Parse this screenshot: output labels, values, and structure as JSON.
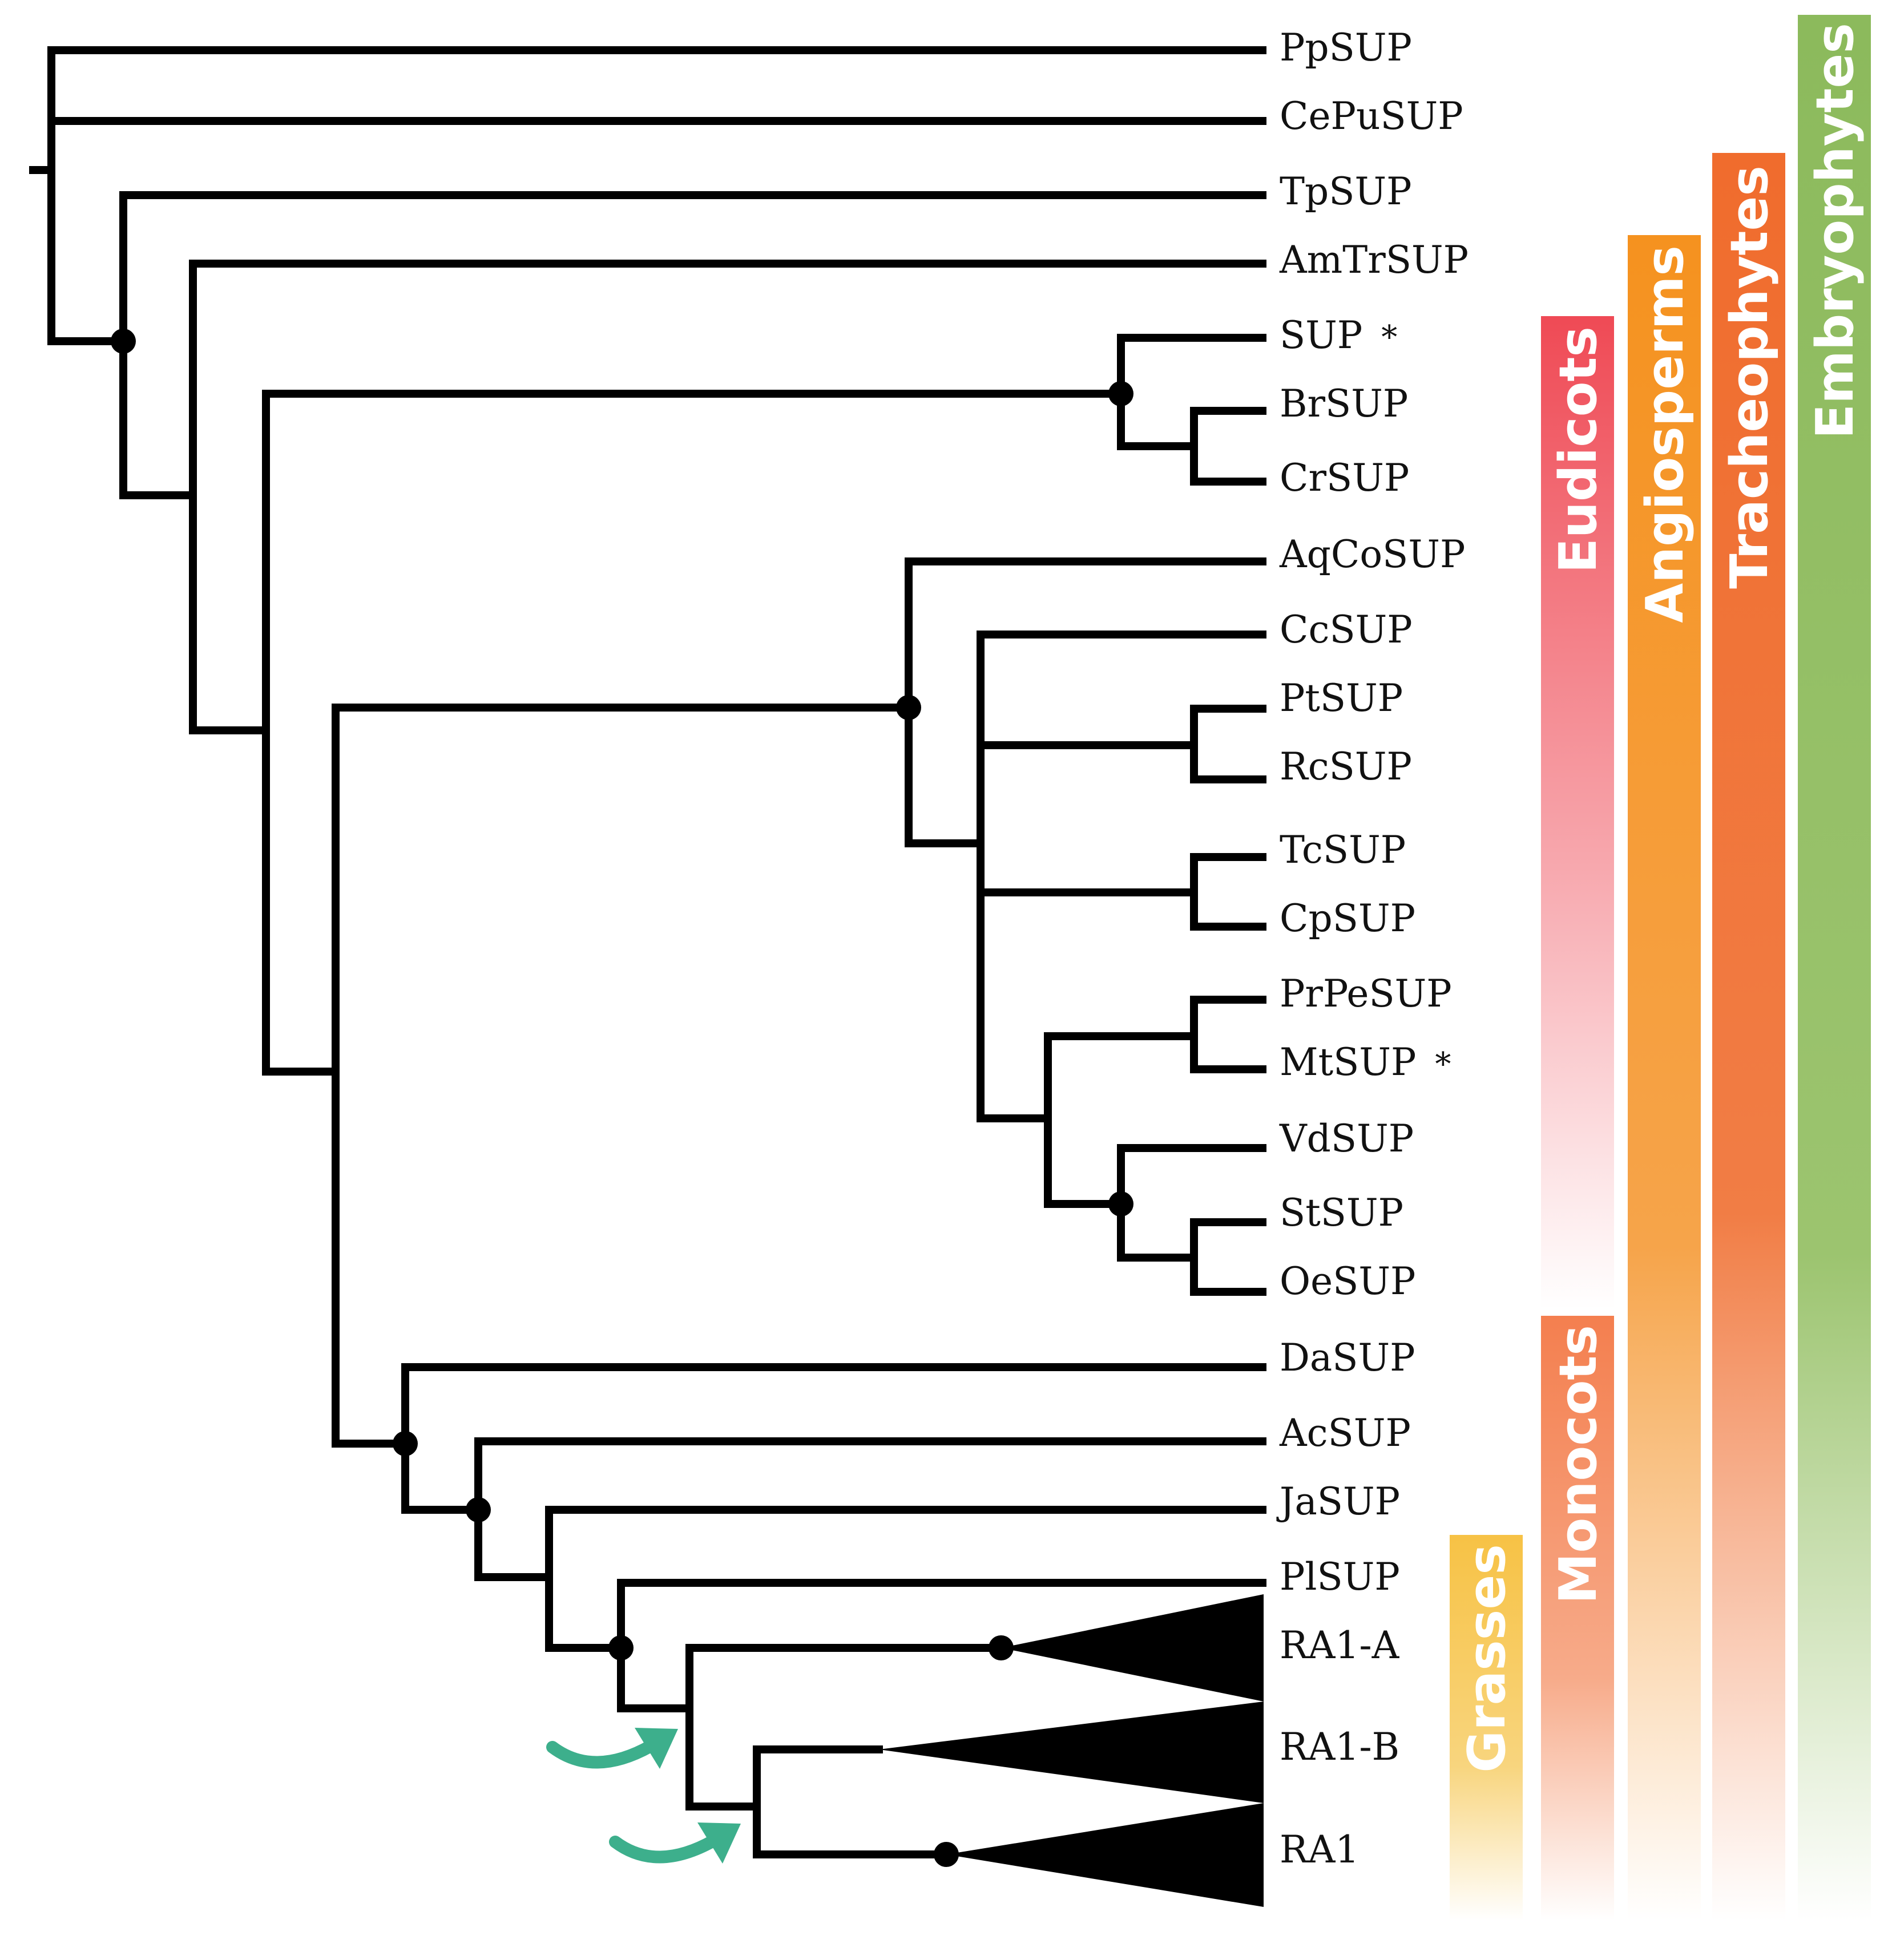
{
  "tree": {
    "leaves": [
      {
        "label": "PpSUP",
        "asterisk": ""
      },
      {
        "label": "CePuSUP",
        "asterisk": ""
      },
      {
        "label": "TpSUP",
        "asterisk": ""
      },
      {
        "label": "AmTrSUP",
        "asterisk": ""
      },
      {
        "label": "SUP",
        "asterisk": "*"
      },
      {
        "label": "BrSUP",
        "asterisk": ""
      },
      {
        "label": "CrSUP",
        "asterisk": ""
      },
      {
        "label": "AqCoSUP",
        "asterisk": ""
      },
      {
        "label": "CcSUP",
        "asterisk": ""
      },
      {
        "label": "PtSUP",
        "asterisk": ""
      },
      {
        "label": "RcSUP",
        "asterisk": ""
      },
      {
        "label": "TcSUP",
        "asterisk": ""
      },
      {
        "label": "CpSUP",
        "asterisk": ""
      },
      {
        "label": "PrPeSUP",
        "asterisk": ""
      },
      {
        "label": "MtSUP",
        "asterisk": "*"
      },
      {
        "label": "VdSUP",
        "asterisk": ""
      },
      {
        "label": "StSUP",
        "asterisk": ""
      },
      {
        "label": "OeSUP",
        "asterisk": ""
      },
      {
        "label": "DaSUP",
        "asterisk": ""
      },
      {
        "label": "AcSUP",
        "asterisk": ""
      },
      {
        "label": "JaSUP",
        "asterisk": ""
      },
      {
        "label": "PlSUP",
        "asterisk": ""
      },
      {
        "label": "RA1-A",
        "asterisk": ""
      },
      {
        "label": "RA1-B",
        "asterisk": ""
      },
      {
        "label": "RA1",
        "asterisk": ""
      }
    ]
  },
  "clades": [
    {
      "label": "Eudicots",
      "color": "#ef4a55"
    },
    {
      "label": "Angiosperms",
      "color": "#f5921f"
    },
    {
      "label": "Tracheophytes",
      "color": "#f06c2d"
    },
    {
      "label": "Embryophytes",
      "color": "#8cba5c"
    },
    {
      "label": "Monocots",
      "color": "#f47f4f"
    },
    {
      "label": "Grasses",
      "color": "#f7c245"
    }
  ],
  "colors": {
    "arrow": "#3daf8c",
    "branch": "#000000"
  }
}
